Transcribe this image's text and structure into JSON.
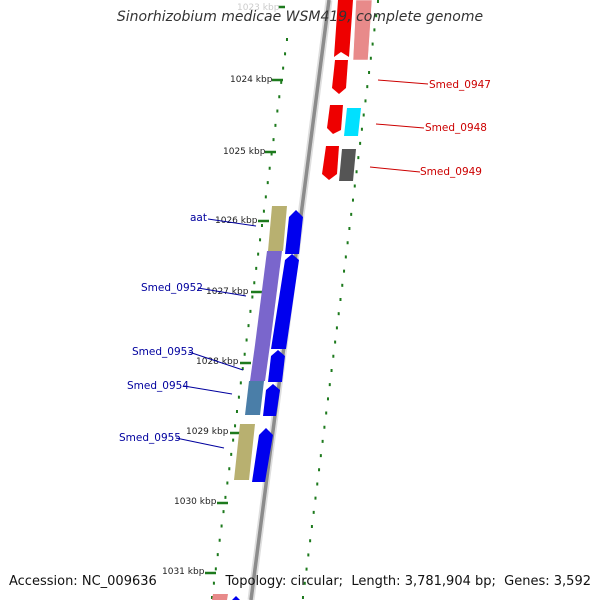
{
  "title": "Sinorhizobium medicae WSM419, complete genome",
  "accession": {
    "label": "Accession:",
    "value": "NC_009636"
  },
  "topology": {
    "topology_label": "Topology:",
    "topology_value": "circular",
    "length_label": "Length:",
    "length_value": "3,781,904 bp",
    "genes_label": "Genes:",
    "genes_value": "3,592"
  },
  "scale_labels": [
    "1023 kbp",
    "1024 kbp",
    "1025 kbp",
    "1026 kbp",
    "1027 kbp",
    "1028 kbp",
    "1029 kbp",
    "1030 kbp",
    "1031 kbp"
  ],
  "genes_forward": [
    "aat",
    "Smed_0952",
    "Smed_0953",
    "Smed_0954",
    "Smed_0955"
  ],
  "genes_reverse": [
    "Smed_0947",
    "Smed_0948",
    "Smed_0949"
  ],
  "colors": {
    "forward_label": "#00009e",
    "reverse_label": "#cc0000",
    "cds_forward": "#0000ee",
    "cds_reverse": "#ee0000",
    "tick": "#1d7a1d",
    "backbone": "#8c8c8c",
    "gene_olive": "#b8b070",
    "gene_purple": "#7a66cc",
    "gene_steel": "#4a7ea8",
    "gene_pink": "#e88a8a",
    "gene_cyan": "#00e0ff",
    "gene_grey": "#555555"
  }
}
